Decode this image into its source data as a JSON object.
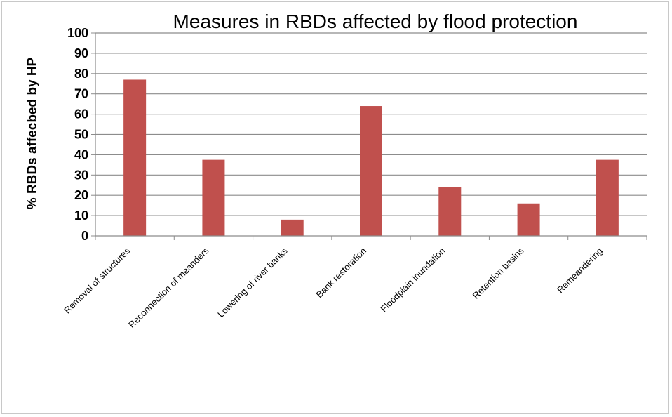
{
  "chart_data": {
    "type": "bar",
    "title": "Measures in RBDs affected by flood protection",
    "xlabel": "",
    "ylabel": "% RBDs affecbed by HP",
    "categories": [
      "Removal of structures",
      "Reconnection of meanders",
      "Lowering of river banks",
      "Bank restoration",
      "Floodplain inundation",
      "Retention basins",
      "Remeandering"
    ],
    "values": [
      77,
      37.5,
      8,
      64,
      24,
      16,
      37.5
    ],
    "ylim": [
      0,
      100
    ],
    "yticks": [
      0,
      10,
      20,
      30,
      40,
      50,
      60,
      70,
      80,
      90,
      100
    ],
    "grid": true,
    "legend": "none",
    "bar_color": "#c0504d",
    "grid_color": "#8c8c8c"
  }
}
